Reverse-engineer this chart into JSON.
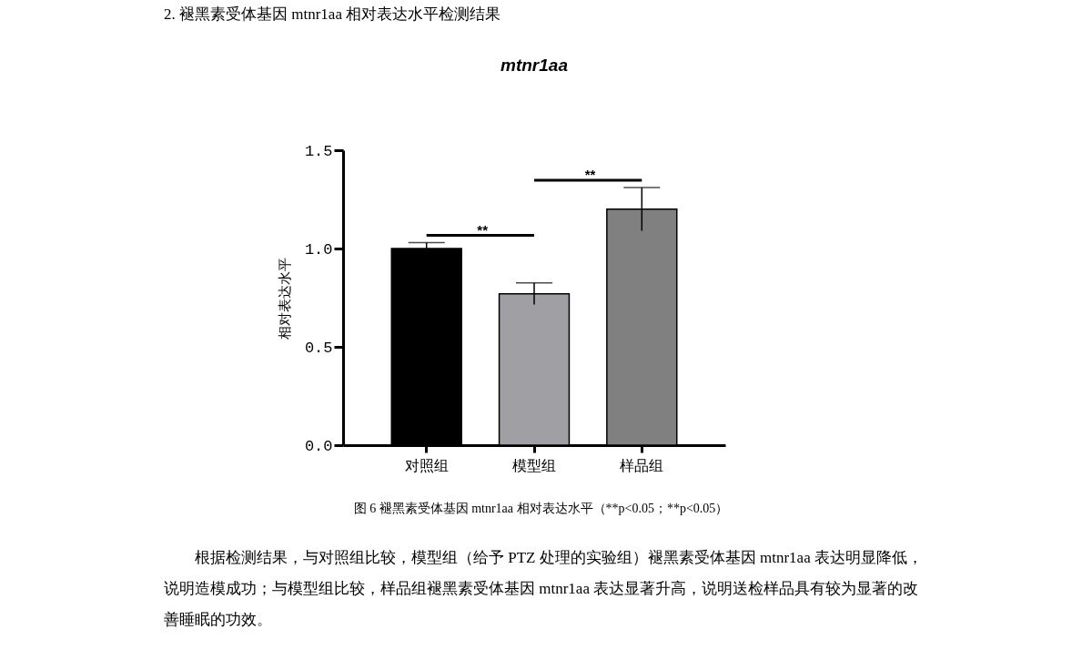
{
  "chart_data": {
    "type": "bar",
    "title": "mtnr1aa",
    "ylabel": "相对表达水平",
    "categories": [
      "对照组",
      "模型组",
      "样品组"
    ],
    "values": [
      1.0,
      0.77,
      1.2
    ],
    "errors": [
      0.03,
      0.055,
      0.11
    ],
    "colors": [
      "#000000",
      "#a0a0a4",
      "#808080"
    ],
    "ylim": [
      0,
      1.5
    ],
    "yticks": [
      {
        "value": 0,
        "label": "0.0"
      },
      {
        "value": 0.5,
        "label": "0.5"
      },
      {
        "value": 1,
        "label": "1.0"
      },
      {
        "value": 1.5,
        "label": "1.5"
      }
    ],
    "grid": false,
    "legend": false,
    "annotations": [
      "2. 褪黑素受体基因 mtnr1aa 相对表达水平检测结果",
      "**",
      "**",
      "图 6 褪黑素受体基因 mtnr1aa 相对表达水平（**p<0.05；**p<0.05）",
      "根据检测结果，与对照组比较，模型组（给予 PTZ 处理的实验组）褪黑素受体基因 mtnr1aa 表达明显降低，说明造模成功；与模型组比较，样品组褪黑素受体基因 mtnr1aa 表达显著升高，说明送检样品具有较为显著的改善睡眠的功效。"
    ]
  }
}
